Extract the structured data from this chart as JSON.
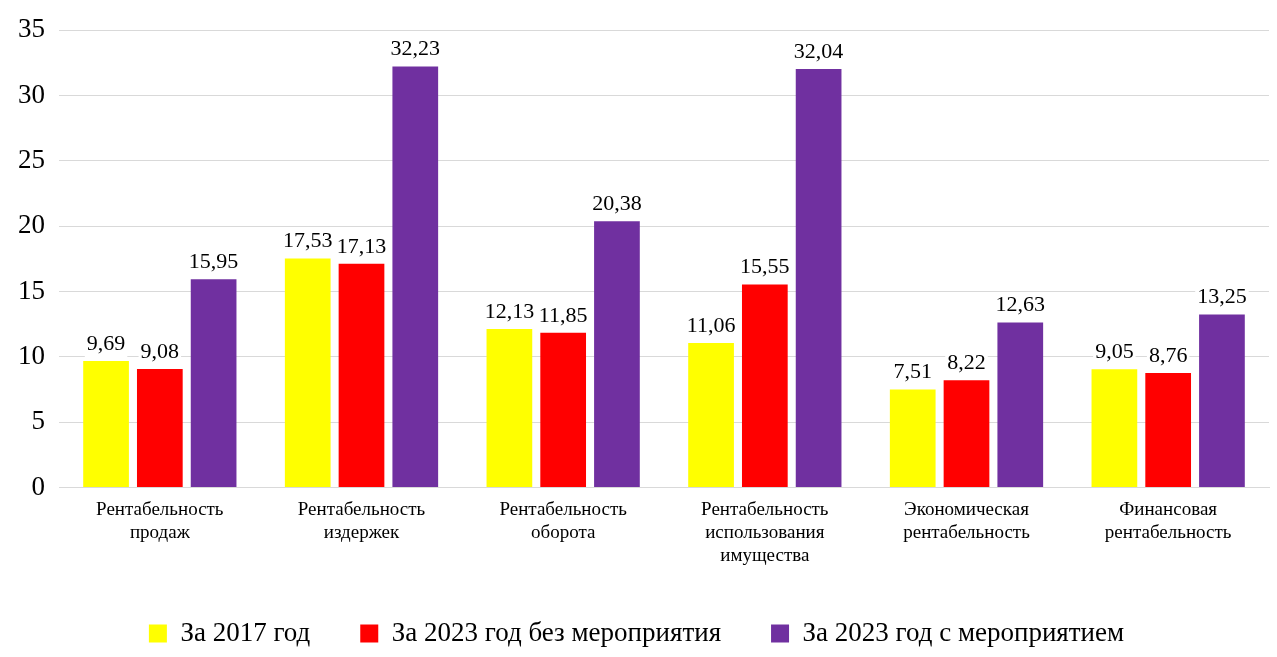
{
  "chart_data": {
    "type": "bar",
    "categories": [
      "Рентабельность продаж",
      "Рентабельность издержек",
      "Рентабельность оборота",
      "Рентабельность использования имущества",
      "Экономическая рентабельность",
      "Финансовая рентабельность"
    ],
    "series": [
      {
        "name": "За 2017 год",
        "color": "#ffff00",
        "values": [
          9.69,
          17.53,
          12.13,
          11.06,
          7.51,
          9.05
        ],
        "value_labels": [
          "9,69",
          "17,53",
          "12,13",
          "11,06",
          "7,51",
          "9,05"
        ]
      },
      {
        "name": "За 2023 год без мероприятия",
        "color": "#ff0000",
        "values": [
          9.08,
          17.13,
          11.85,
          15.55,
          8.22,
          8.76
        ],
        "value_labels": [
          "9,08",
          "17,13",
          "11,85",
          "15,55",
          "8,22",
          "8,76"
        ]
      },
      {
        "name": "За 2023 год с мероприятием",
        "color": "#7030a0",
        "values": [
          15.95,
          32.23,
          20.38,
          32.04,
          12.63,
          13.25
        ],
        "value_labels": [
          "15,95",
          "32,23",
          "20,38",
          "32,04",
          "12,63",
          "13,25"
        ]
      }
    ],
    "ylim": [
      0,
      35
    ],
    "yticks": [
      0,
      5,
      10,
      15,
      20,
      25,
      30,
      35
    ],
    "grid": "y",
    "legend": "bottom"
  }
}
